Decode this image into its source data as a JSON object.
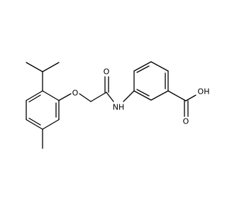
{
  "atom_labels": [
    "O",
    "O",
    "NH",
    "OH",
    "O"
  ]
}
